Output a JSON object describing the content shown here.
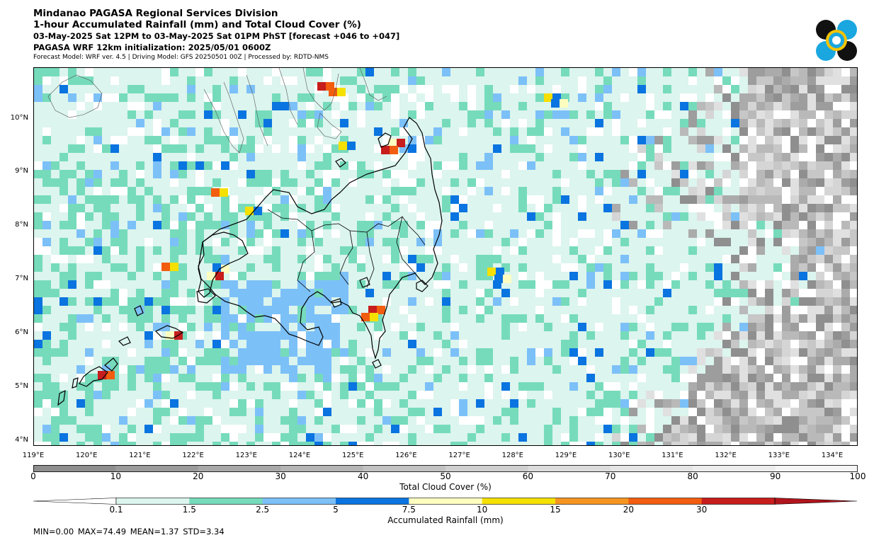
{
  "header": {
    "line1": "Mindanao PAGASA Regional Services Division",
    "line2": "1-hour Accumulated Rainfall (mm) and Total Cloud Cover (%)",
    "line3": "03-May-2025 Sat 12PM to 03-May-2025 Sat 01PM PhST [forecast +046 to +047]",
    "line4": "PAGASA WRF 12km initialization: 2025/05/01 0600Z",
    "line5": "Forecast Model: WRF ver. 4.5 | Driving Model: GFS 20250501 00Z | Processed by: RDTD-NMS"
  },
  "map": {
    "lat_labels": [
      "10°N",
      "9°N",
      "8°N",
      "7°N",
      "6°N",
      "5°N",
      "4°N"
    ],
    "lon_labels": [
      "119°E",
      "120°E",
      "121°E",
      "122°E",
      "123°E",
      "124°E",
      "125°E",
      "126°E",
      "127°E",
      "128°E",
      "129°E",
      "130°E",
      "131°E",
      "132°E",
      "133°E",
      "134°E"
    ]
  },
  "cloud_colorbar": {
    "title": "Total Cloud Cover (%)",
    "ticks": [
      "0",
      "10",
      "20",
      "30",
      "40",
      "50",
      "60",
      "70",
      "80",
      "90",
      "100"
    ],
    "colors": [
      "#8e8e8e",
      "#9b9b9b",
      "#a8a8a8",
      "#b5b5b5",
      "#c2c2c2",
      "#cfcfcf",
      "#dcdcdc",
      "#e5e5e5",
      "#ededed",
      "#f5f5f5"
    ]
  },
  "rain_colorbar": {
    "title": "Accumulated Rainfall (mm)",
    "ticks": [
      "0.1",
      "1.5",
      "2.5",
      "5",
      "7.5",
      "10",
      "15",
      "20",
      "30"
    ],
    "colors": [
      "#dcf5ee",
      "#76dbbb",
      "#7cc0f8",
      "#0a74e0",
      "#fdfdc0",
      "#f5e000",
      "#f59520",
      "#f25d0f",
      "#c71d1d"
    ]
  },
  "stats": "MIN=0.00 MAX=74.49 MEAN=1.37 STD=3.34"
}
